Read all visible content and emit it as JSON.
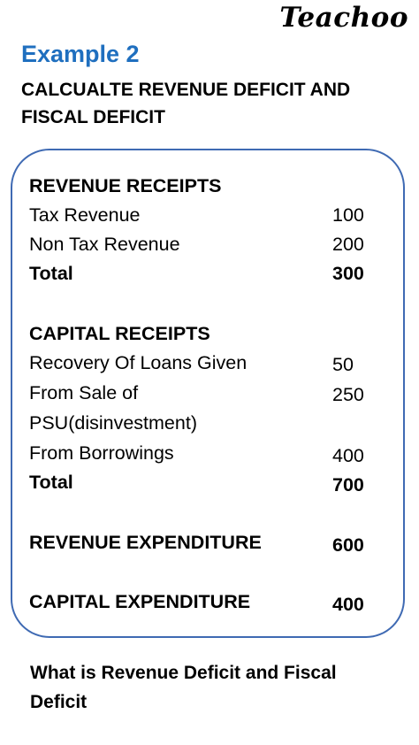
{
  "logo": "Teachoo",
  "example_title": "Example 2",
  "heading": "CALCUALTE REVENUE DEFICIT AND FISCAL DEFICIT",
  "revenue_receipts": {
    "heading": "REVENUE RECEIPTS",
    "items": [
      {
        "label": "Tax Revenue",
        "value": "100"
      },
      {
        "label": "Non Tax Revenue",
        "value": "200"
      }
    ],
    "total_label": "Total",
    "total_value": "300"
  },
  "capital_receipts": {
    "heading": "CAPITAL RECEIPTS",
    "items": [
      {
        "label": "Recovery Of Loans Given",
        "value": "50"
      },
      {
        "label": "From Sale of",
        "value": "250"
      },
      {
        "label": "PSU(disinvestment)",
        "value": ""
      },
      {
        "label": "From Borrowings",
        "value": "400"
      }
    ],
    "total_label": "Total",
    "total_value": "700"
  },
  "revenue_expenditure": {
    "label": "REVENUE EXPENDITURE",
    "value": "600"
  },
  "capital_expenditure": {
    "label": "CAPITAL EXPENDITURE",
    "value": "400"
  },
  "question": "What is Revenue Deficit and Fiscal Deficit"
}
